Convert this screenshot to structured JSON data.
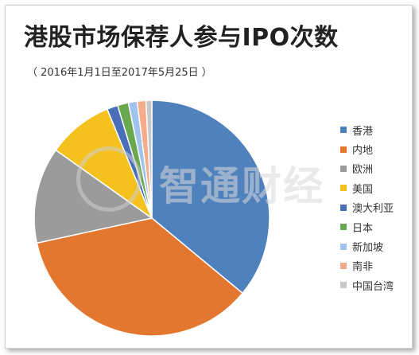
{
  "chart_data": {
    "type": "pie",
    "title": "港股市场保荐人参与IPO次数",
    "subtitle": "（ 2016年1月1日至2017年5月25日 ）",
    "legend_position": "right",
    "slices": [
      {
        "label": "香港",
        "percent": 36.0,
        "color": "#4f81bd"
      },
      {
        "label": "内地",
        "percent": 35.6,
        "color": "#e4772f"
      },
      {
        "label": "欧洲",
        "percent": 13.2,
        "color": "#9b9b9b"
      },
      {
        "label": "美国",
        "percent": 9.0,
        "color": "#f5c11f"
      },
      {
        "label": "澳大利亚",
        "percent": 1.5,
        "color": "#4a6fb8"
      },
      {
        "label": "日本",
        "percent": 1.5,
        "color": "#6aa84f"
      },
      {
        "label": "新加坡",
        "percent": 1.2,
        "color": "#9fc3ea"
      },
      {
        "label": "南非",
        "percent": 1.2,
        "color": "#f4ac8a"
      },
      {
        "label": "中国台湾",
        "percent": 0.8,
        "color": "#c8c8c8"
      }
    ]
  },
  "watermark": {
    "text": "智通财经"
  }
}
